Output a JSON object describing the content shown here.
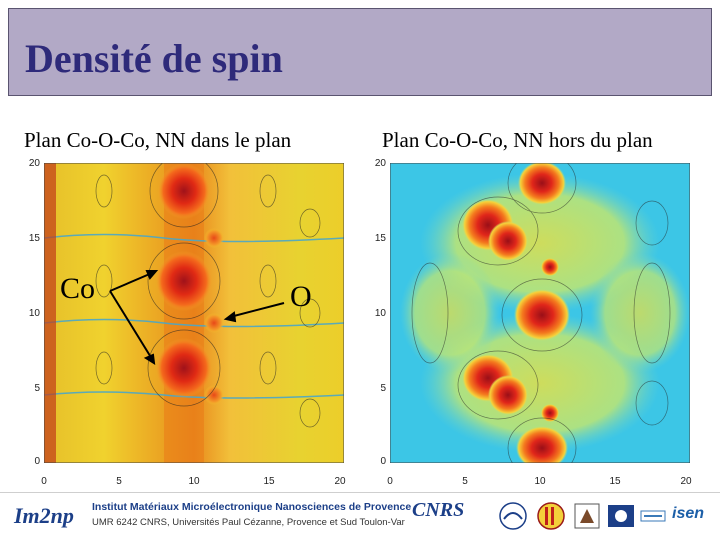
{
  "title": "Densité de spin",
  "captions": {
    "left": "Plan Co-O-Co, NN dans le plan",
    "right": "Plan Co-O-Co, NN hors du plan"
  },
  "annotations": {
    "co": "Co",
    "o": "O"
  },
  "axes": {
    "y_ticks": [
      "20",
      "15",
      "10",
      "5",
      "0"
    ],
    "x_ticks": [
      "0",
      "5",
      "10",
      "15",
      "20"
    ]
  },
  "footer": {
    "logo_em2np": "Im2np",
    "institute_line1": "Institut Matériaux Microélectronique Nanosciences de Provence",
    "institute_line2": "UMR 6242 CNRS, Universités Paul Cézanne, Provence et Sud Toulon-Var",
    "logo_cnrs": "CNRS",
    "logo_isen": "isen"
  },
  "colors": {
    "title_bg": "#b2a9c6",
    "title_text": "#2e2a7a"
  }
}
